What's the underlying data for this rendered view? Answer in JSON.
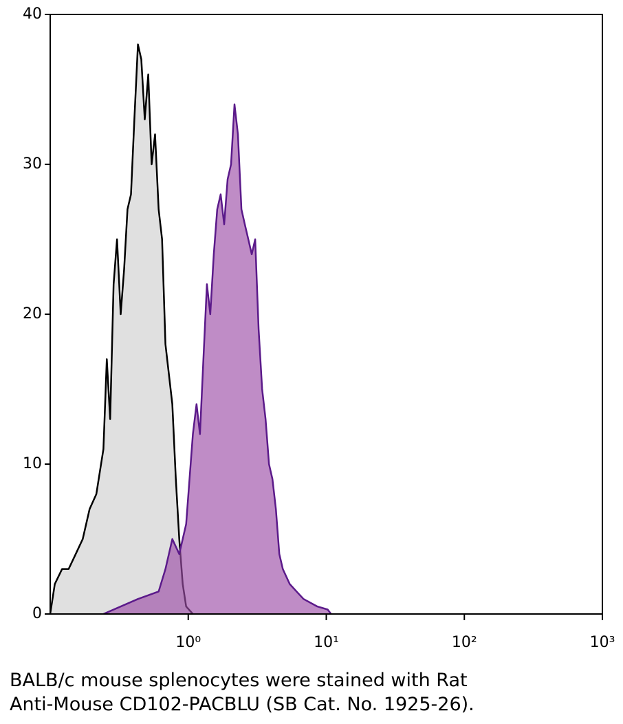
{
  "chart_data": {
    "type": "area",
    "xlog": true,
    "xlim": [
      0.1,
      1000
    ],
    "ylim": [
      0,
      40
    ],
    "xticks": [
      {
        "value": 1,
        "label": "10⁰"
      },
      {
        "value": 10,
        "label": "10¹"
      },
      {
        "value": 100,
        "label": "10²"
      },
      {
        "value": 1000,
        "label": "10³"
      }
    ],
    "yticks": [
      0,
      10,
      20,
      30,
      40
    ],
    "series": [
      {
        "color": "#000000",
        "fill": "#e0e0e0",
        "x": [
          0.1,
          0.108,
          0.122,
          0.136,
          0.153,
          0.172,
          0.193,
          0.216,
          0.243,
          0.257,
          0.272,
          0.288,
          0.305,
          0.324,
          0.343,
          0.363,
          0.385,
          0.407,
          0.432,
          0.457,
          0.484,
          0.513,
          0.543,
          0.575,
          0.61,
          0.646,
          0.684,
          0.724,
          0.767,
          0.813,
          0.861,
          0.912,
          0.966,
          1.08
        ],
        "values": [
          0,
          2,
          3,
          3,
          4,
          5,
          7,
          8,
          11,
          17,
          13,
          22,
          25,
          20,
          23,
          27,
          28,
          33,
          38,
          37,
          33,
          36,
          30,
          32,
          27,
          25,
          18,
          16,
          14,
          9,
          5,
          2,
          0.5,
          0
        ]
      },
      {
        "color": "#5b1a8a",
        "fill": "#9c4fa8",
        "x": [
          0.243,
          0.432,
          0.61,
          0.684,
          0.767,
          0.861,
          0.966,
          1.08,
          1.148,
          1.216,
          1.288,
          1.365,
          1.445,
          1.531,
          1.622,
          1.718,
          1.82,
          1.928,
          2.042,
          2.163,
          2.291,
          2.427,
          2.57,
          2.723,
          2.884,
          3.055,
          3.236,
          3.428,
          3.631,
          3.846,
          4.074,
          4.315,
          4.571,
          4.842,
          5.433,
          6.095,
          6.839,
          8.61,
          10.23,
          10.84
        ],
        "values": [
          0,
          1,
          1.5,
          3,
          5,
          4,
          6,
          12,
          14,
          12,
          17,
          22,
          20,
          24,
          27,
          28,
          26,
          29,
          30,
          34,
          32,
          27,
          26,
          25,
          24,
          25,
          19,
          15,
          13,
          10,
          9,
          7,
          4,
          3,
          2,
          1.5,
          1,
          0.5,
          0.3,
          0
        ]
      }
    ],
    "caption": [
      "BALB/c mouse splenocytes were stained with Rat",
      "Anti-Mouse CD102-PACBLU (SB Cat. No. 1925-26)."
    ]
  }
}
